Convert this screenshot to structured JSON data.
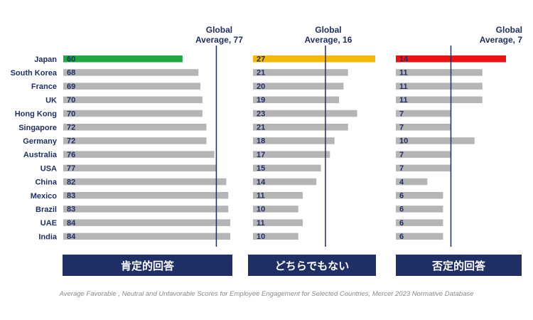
{
  "chart_data": {
    "type": "bar",
    "orientation": "horizontal",
    "categories": [
      "Japan",
      "South Korea",
      "France",
      "UK",
      "Hong Kong",
      "Singapore",
      "Germany",
      "Australia",
      "USA",
      "China",
      "Mexico",
      "Brazil",
      "UAE",
      "India"
    ],
    "panels": [
      {
        "label": "肯定的回答",
        "global_average_label": "Global Average, 77",
        "global_average": 77,
        "values": [
          60,
          68,
          69,
          70,
          70,
          72,
          72,
          76,
          77,
          82,
          83,
          83,
          84,
          84
        ],
        "highlight_color": "#1fa843",
        "bar_color": "#b5b5b5",
        "xlim": [
          0,
          84
        ]
      },
      {
        "label": "どちらでもない",
        "global_average_label": "Global Average, 16",
        "global_average": 16,
        "values": [
          27,
          21,
          20,
          19,
          23,
          21,
          18,
          17,
          15,
          14,
          11,
          10,
          11,
          10
        ],
        "highlight_color": "#f5b800",
        "bar_color": "#b5b5b5",
        "xlim": [
          0,
          27
        ]
      },
      {
        "label": "否定的回答",
        "global_average_label": "Global Average, 7",
        "global_average": 7,
        "values": [
          14,
          11,
          11,
          11,
          7,
          7,
          10,
          7,
          7,
          4,
          6,
          6,
          6,
          6
        ],
        "highlight_color": "#ee1111",
        "bar_color": "#b5b5b5",
        "xlim": [
          0,
          14
        ]
      }
    ],
    "caption": "Average Favorable , Neutral and Unfavorable Scores for Employee Engagement for Selected Countries, Mercer 2023 Normative Database"
  },
  "colors": {
    "navy": "#1f2f66",
    "bar_gray": "#b5b5b5",
    "caption_gray": "#8a8a8a"
  }
}
